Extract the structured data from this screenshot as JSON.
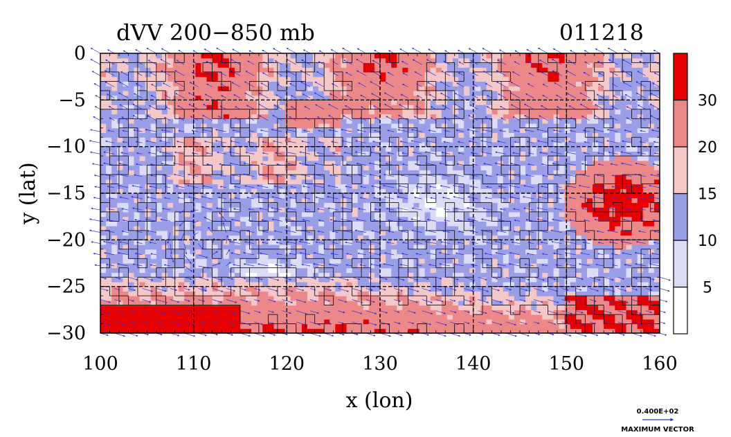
{
  "chart_data": {
    "type": "heatmap",
    "title_left": "dVV 200−850 mb",
    "title_right": "011218",
    "xlabel": "x (lon)",
    "ylabel": "y (lat)",
    "xlim": [
      100,
      160
    ],
    "ylim": [
      -30,
      0
    ],
    "x_ticks": [
      100,
      110,
      120,
      130,
      140,
      150,
      160
    ],
    "x_tick_labels": [
      "100",
      "110",
      "120",
      "130",
      "140",
      "150",
      "160"
    ],
    "y_ticks": [
      0,
      -5,
      -10,
      -15,
      -20,
      -25,
      -30
    ],
    "y_tick_labels": [
      "0",
      "−5",
      "−10",
      "−15",
      "−20",
      "−25",
      "−30"
    ],
    "grid": true,
    "colorbar": {
      "levels": [
        0,
        5,
        10,
        15,
        20,
        30,
        35
      ],
      "colors": [
        "#ffffff",
        "#dcdcf7",
        "#9a9ee6",
        "#f5c8c8",
        "#ec8888",
        "#e60000"
      ],
      "labels": [
        "5",
        "10",
        "15",
        "20",
        "30"
      ],
      "label_values": [
        5,
        10,
        15,
        20,
        30
      ]
    },
    "vector_key": {
      "value_label": "0.400E+02",
      "caption": "MAXIMUM VECTOR"
    }
  }
}
